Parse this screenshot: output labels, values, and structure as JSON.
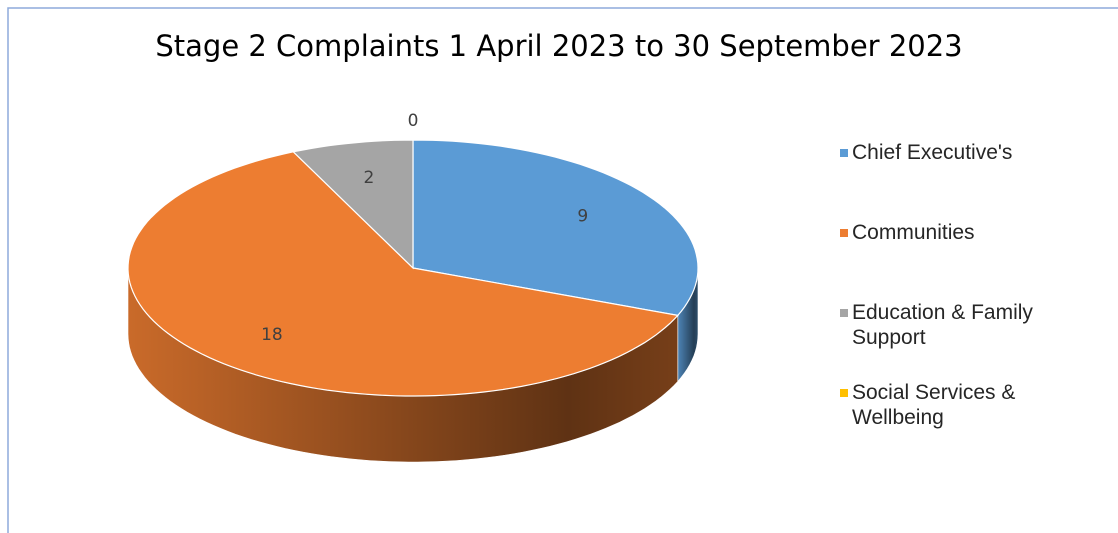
{
  "chart_data": {
    "type": "pie",
    "title": "Stage 2 Complaints 1 April 2023 to 30 September 2023",
    "categories": [
      "Chief Executive's",
      "Communities",
      "Education & Family Support",
      "Social Services & Wellbeing"
    ],
    "values": [
      9,
      18,
      2,
      0
    ],
    "colors": [
      "#5b9bd5",
      "#ed7d31",
      "#a5a5a5",
      "#ffc000"
    ],
    "legend": "right"
  }
}
